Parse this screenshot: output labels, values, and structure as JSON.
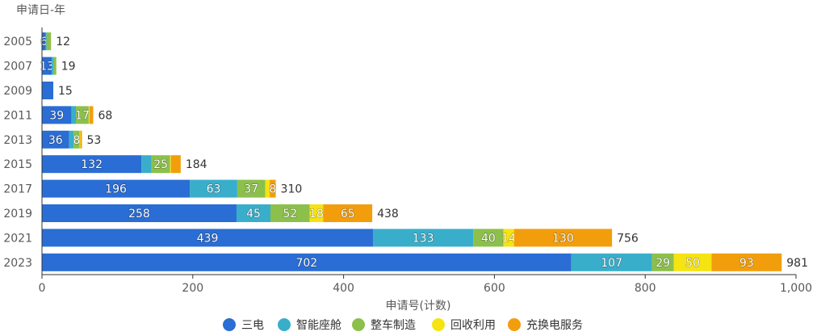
{
  "chart_data": {
    "type": "bar",
    "orientation": "horizontal",
    "stacked": true,
    "y_axis_title": "申请日-年",
    "x_axis_title": "申请号(计数)",
    "categories": [
      "2005",
      "2007",
      "2009",
      "2011",
      "2013",
      "2015",
      "2017",
      "2019",
      "2021",
      "2023"
    ],
    "series": [
      {
        "name": "三电",
        "color": "#2a6dd4",
        "values": [
          5,
          13,
          15,
          39,
          36,
          132,
          196,
          258,
          439,
          702
        ]
      },
      {
        "name": "智能座舱",
        "color": "#39aecb",
        "values": [
          1,
          2,
          0,
          6,
          6,
          13,
          63,
          45,
          133,
          107
        ]
      },
      {
        "name": "整车制造",
        "color": "#8cc04b",
        "values": [
          6,
          4,
          0,
          17,
          8,
          25,
          37,
          52,
          40,
          29
        ]
      },
      {
        "name": "回收利用",
        "color": "#f6e312",
        "values": [
          0,
          0,
          0,
          1,
          1,
          1,
          6,
          18,
          14,
          50
        ]
      },
      {
        "name": "充换电服务",
        "color": "#f29e0c",
        "values": [
          0,
          0,
          0,
          5,
          2,
          13,
          8,
          65,
          130,
          93
        ]
      }
    ],
    "segment_labels": [
      [
        "6",
        "",
        "",
        "",
        ""
      ],
      [
        "13",
        "",
        "",
        "",
        ""
      ],
      [
        "",
        "",
        "",
        "",
        ""
      ],
      [
        "39",
        "",
        "17",
        "",
        ""
      ],
      [
        "36",
        "",
        "8",
        "",
        ""
      ],
      [
        "132",
        "",
        "25",
        "",
        ""
      ],
      [
        "196",
        "63",
        "37",
        "",
        "8"
      ],
      [
        "258",
        "45",
        "52",
        "18",
        "65"
      ],
      [
        "439",
        "133",
        "40",
        "14",
        "130"
      ],
      [
        "702",
        "107",
        "29",
        "50",
        "93"
      ]
    ],
    "totals": [
      12,
      19,
      15,
      68,
      53,
      184,
      310,
      438,
      756,
      981
    ],
    "xlim": [
      0,
      1000
    ],
    "x_ticks": [
      "0",
      "200",
      "400",
      "600",
      "800",
      "1,000"
    ],
    "x_tick_values": [
      0,
      200,
      400,
      600,
      800,
      1000
    ],
    "legend_position": "bottom",
    "grid": false
  }
}
